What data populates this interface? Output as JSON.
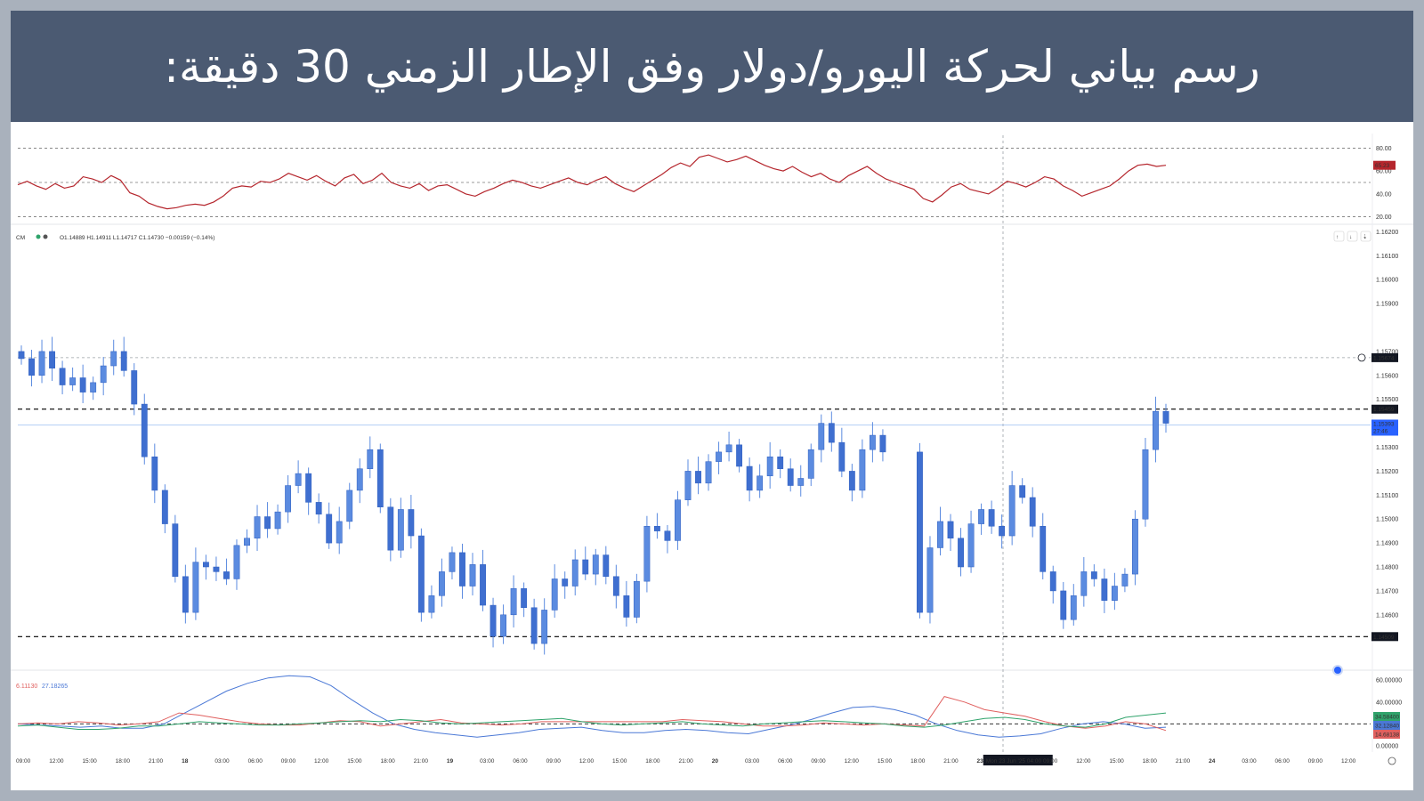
{
  "banner": {
    "title": "رسم بياني لحركة اليورو/دولار وفق الإطار الزمني 30 دقيقة:"
  },
  "colors": {
    "banner_bg": "#4b5a72",
    "candle_up": "#5b8be0",
    "candle_down": "#5b8be0",
    "rsi_line": "#b5262d",
    "macd_blue": "#4a78d6",
    "macd_red": "#e0605f",
    "macd_green": "#2fa36b",
    "level_line": "#000000"
  },
  "chart_data": [
    {
      "type": "line",
      "name_hint": "top-oscillator",
      "y_ticks": [
        "80.00",
        "60.00",
        "40.00",
        "20.00"
      ],
      "ylim": [
        15,
        85
      ],
      "current_value": "65.23",
      "guide_levels": [
        80,
        50,
        20
      ],
      "values": [
        48,
        51,
        47,
        44,
        49,
        45,
        47,
        55,
        53,
        50,
        56,
        52,
        41,
        38,
        32,
        29,
        27,
        28,
        30,
        31,
        30,
        33,
        38,
        45,
        47,
        46,
        51,
        50,
        53,
        58,
        55,
        52,
        56,
        51,
        47,
        54,
        57,
        49,
        52,
        58,
        50,
        47,
        45,
        49,
        43,
        47,
        48,
        44,
        40,
        38,
        42,
        45,
        49,
        52,
        50,
        47,
        45,
        48,
        51,
        54,
        50,
        48,
        52,
        55,
        49,
        45,
        42,
        47,
        52,
        57,
        63,
        67,
        64,
        72,
        74,
        71,
        68,
        70,
        73,
        69,
        65,
        62,
        60,
        64,
        59,
        55,
        58,
        53,
        50,
        56,
        60,
        64,
        58,
        53,
        50,
        47,
        44,
        36,
        33,
        39,
        46,
        49,
        44,
        42,
        40,
        45,
        51,
        49,
        46,
        50,
        55,
        53,
        47,
        43,
        38,
        41,
        44,
        47,
        53,
        60,
        65,
        66,
        64,
        65
      ]
    },
    {
      "type": "candlestick",
      "name_hint": "EURUSD-30m",
      "ohlc_header": "O1.14889 H1.14911 L1.14717 C1.14730 −0.00159 (−0.14%)",
      "symbol_short": "CM",
      "y_ticks": [
        "1.16200",
        "1.16100",
        "1.16000",
        "1.15900",
        "1.15700",
        "1.15600",
        "1.15500",
        "1.15300",
        "1.15200",
        "1.15100",
        "1.15000",
        "1.14900",
        "1.14800",
        "1.14700",
        "1.14600"
      ],
      "ylim": [
        1.1438,
        1.1622
      ],
      "price_tags": {
        "crosshair": "1.15674",
        "resistance": "1.15459",
        "last_price": "1.15393",
        "countdown": "27:46",
        "support": "1.14509"
      },
      "levels": [
        1.15459,
        1.14509
      ],
      "crosshair_price": 1.15674,
      "last_price": 1.15393,
      "closes": [
        1.1567,
        1.156,
        1.157,
        1.1563,
        1.1556,
        1.1559,
        1.1553,
        1.1557,
        1.1564,
        1.157,
        1.1562,
        1.1548,
        1.1526,
        1.1512,
        1.1498,
        1.1476,
        1.1461,
        1.1482,
        1.148,
        1.1478,
        1.1475,
        1.1489,
        1.1492,
        1.1501,
        1.1496,
        1.1503,
        1.1514,
        1.1519,
        1.1507,
        1.1502,
        1.149,
        1.1499,
        1.1512,
        1.1521,
        1.1529,
        1.1505,
        1.1487,
        1.1504,
        1.1493,
        1.1461,
        1.1468,
        1.1478,
        1.1486,
        1.1472,
        1.1481,
        1.1464,
        1.1451,
        1.146,
        1.1471,
        1.1463,
        1.1448,
        1.1462,
        1.1475,
        1.1472,
        1.1483,
        1.1477,
        1.1485,
        1.1476,
        1.1468,
        1.1459,
        1.1474,
        1.1497,
        1.1495,
        1.1491,
        1.1508,
        1.152,
        1.1515,
        1.1524,
        1.1528,
        1.1531,
        1.1522,
        1.1512,
        1.1518,
        1.1526,
        1.1521,
        1.1514,
        1.1517,
        1.1529,
        1.154,
        1.1532,
        1.152,
        1.1512,
        1.1529,
        1.1535,
        1.1528,
        1.1461,
        1.1488,
        1.1499,
        1.1492,
        1.148,
        1.1498,
        1.1504,
        1.1497,
        1.1493,
        1.1514,
        1.1509,
        1.1497,
        1.1478,
        1.147,
        1.1458,
        1.1468,
        1.1478,
        1.1475,
        1.1466,
        1.1472,
        1.1477,
        1.15,
        1.1529,
        1.1545,
        1.154
      ],
      "x_ticks": [
        "09:00",
        "12:00",
        "15:00",
        "18:00",
        "21:00",
        "18",
        "03:00",
        "06:00",
        "09:00",
        "12:00",
        "15:00",
        "18:00",
        "21:00",
        "19",
        "03:00",
        "06:00",
        "09:00",
        "12:00",
        "15:00",
        "18:00",
        "21:00",
        "20",
        "03:00",
        "06:00",
        "09:00",
        "12:00",
        "15:00",
        "18:00",
        "21:00",
        "23",
        "Mon 23 Jun '25  04:00",
        "09:00",
        "12:00",
        "15:00",
        "18:00",
        "21:00",
        "24",
        "03:00",
        "06:00",
        "09:00",
        "12:00"
      ]
    },
    {
      "type": "line",
      "name_hint": "bottom-indicator",
      "header_values": [
        "6.11130",
        "27.18265"
      ],
      "y_ticks": [
        "60.00000",
        "40.00000",
        "0.00000"
      ],
      "ylim": [
        0,
        65
      ],
      "tags": [
        "34.58400",
        "32.12840",
        "14.68138"
      ],
      "guide_level": 20,
      "series": [
        {
          "values": [
            20,
            19,
            18,
            17,
            18,
            16,
            16,
            20,
            30,
            40,
            50,
            57,
            62,
            64,
            63,
            55,
            42,
            30,
            20,
            15,
            12,
            10,
            8,
            10,
            12,
            15,
            16,
            17,
            14,
            12,
            12,
            14,
            15,
            14,
            12,
            11,
            15,
            19,
            24,
            30,
            35,
            36,
            33,
            28,
            20,
            14,
            10,
            8,
            9,
            11,
            16,
            20,
            22,
            20,
            16,
            17
          ]
        },
        {
          "values": [
            20,
            21,
            20,
            22,
            21,
            19,
            20,
            22,
            30,
            28,
            25,
            22,
            20,
            19,
            19,
            21,
            23,
            22,
            18,
            20,
            22,
            24,
            21,
            20,
            19,
            20,
            22,
            22,
            22,
            22,
            22,
            22,
            22,
            24,
            23,
            22,
            20,
            18,
            18,
            19,
            21,
            20,
            19,
            20,
            19,
            18,
            45,
            40,
            33,
            30,
            27,
            22,
            18,
            16,
            18,
            22,
            20,
            14
          ]
        },
        {
          "values": [
            18,
            19,
            17,
            15,
            15,
            16,
            18,
            18,
            20,
            22,
            21,
            20,
            19,
            19,
            20,
            21,
            22,
            23,
            22,
            24,
            23,
            21,
            20,
            21,
            22,
            23,
            24,
            25,
            22,
            20,
            19,
            20,
            21,
            22,
            20,
            19,
            18,
            20,
            21,
            22,
            23,
            22,
            21,
            20,
            18,
            17,
            19,
            22,
            25,
            26,
            24,
            20,
            18,
            17,
            20,
            26,
            28,
            30
          ]
        }
      ]
    }
  ]
}
